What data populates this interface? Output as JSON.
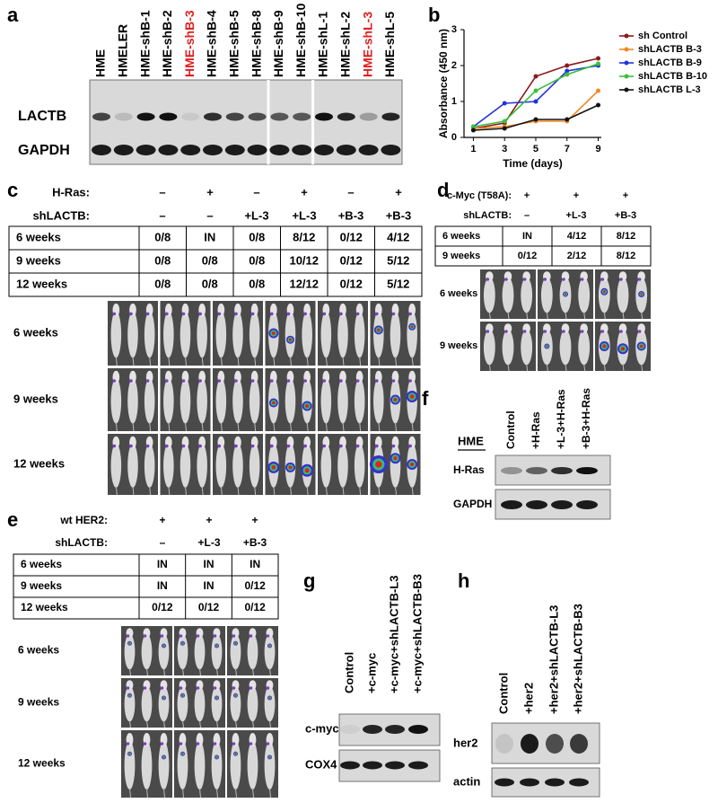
{
  "panel_a": {
    "label": "a",
    "lanes": [
      "HME",
      "HMELER",
      "HME-shB-1",
      "HME-shB-2",
      "HME-shB-3",
      "HME-shB-4",
      "HME-shB-5",
      "HME-shB-8",
      "HME-shB-9",
      "HME-shB-10",
      "HME-shL-1",
      "HME-shL-2",
      "HME-shL-3",
      "HME-shL-5"
    ],
    "lane_colors": [
      "#000000",
      "#000000",
      "#000000",
      "#000000",
      "#e02020",
      "#000000",
      "#000000",
      "#000000",
      "#000000",
      "#000000",
      "#000000",
      "#000000",
      "#e02020",
      "#000000"
    ],
    "rows": [
      "LACTB",
      "GAPDH"
    ]
  },
  "chart_data": {
    "type": "line",
    "panel_label": "b",
    "x_label": "Time (days)",
    "y_label": "Absorbance (450 nm)",
    "x": [
      1,
      3,
      5,
      7,
      9
    ],
    "xlim": [
      0.4,
      9.2
    ],
    "xticks": [
      1,
      3,
      5,
      7,
      9
    ],
    "ylim": [
      0,
      3
    ],
    "yticks": [
      0,
      1,
      2,
      3
    ],
    "series": [
      {
        "name": "sh Control",
        "color": "#8b1a1a",
        "values": [
          0.25,
          0.4,
          1.7,
          2.0,
          2.2
        ]
      },
      {
        "name": "shLACTB B-3",
        "color": "#f08a24",
        "values": [
          0.25,
          0.3,
          0.45,
          0.45,
          1.3
        ]
      },
      {
        "name": "shLACTB B-9",
        "color": "#2233dd",
        "values": [
          0.3,
          0.95,
          1.0,
          1.85,
          2.0
        ]
      },
      {
        "name": "shLACTB B-10",
        "color": "#3cbf3c",
        "values": [
          0.3,
          0.45,
          1.3,
          1.75,
          2.05
        ]
      },
      {
        "name": "shLACTB L-3",
        "color": "#111111",
        "values": [
          0.2,
          0.25,
          0.5,
          0.5,
          0.9
        ]
      }
    ]
  },
  "panel_c": {
    "label": "c",
    "conditions": [
      {
        "name": "H-Ras:",
        "values": [
          "–",
          "+",
          "–",
          "+",
          "–",
          "+"
        ]
      },
      {
        "name": "shLACTB:",
        "values": [
          "–",
          "–",
          "+L-3",
          "+L-3",
          "+B-3",
          "+B-3"
        ]
      }
    ],
    "table": [
      {
        "label": "6 weeks",
        "cells": [
          "0/8",
          "IN",
          "0/8",
          "8/12",
          "0/12",
          "4/12"
        ]
      },
      {
        "label": "9 weeks",
        "cells": [
          "0/8",
          "0/8",
          "0/8",
          "10/12",
          "0/12",
          "5/12"
        ]
      },
      {
        "label": "12 weeks",
        "cells": [
          "0/8",
          "0/8",
          "0/8",
          "12/12",
          "0/12",
          "5/12"
        ]
      }
    ],
    "image_rows": [
      "6 weeks",
      "9 weeks",
      "12 weeks"
    ]
  },
  "panel_d": {
    "label": "d",
    "conditions": [
      {
        "name": "c-Myc (T58A):",
        "values": [
          "+",
          "+",
          "+"
        ]
      },
      {
        "name": "shLACTB:",
        "values": [
          "–",
          "+L-3",
          "+B-3"
        ]
      }
    ],
    "table": [
      {
        "label": "6 weeks",
        "cells": [
          "IN",
          "4/12",
          "8/12"
        ]
      },
      {
        "label": "9 weeks",
        "cells": [
          "0/12",
          "2/12",
          "8/12"
        ]
      }
    ],
    "image_rows": [
      "6 weeks",
      "9 weeks"
    ]
  },
  "panel_e": {
    "label": "e",
    "conditions": [
      {
        "name": "wt HER2:",
        "values": [
          "+",
          "+",
          "+"
        ]
      },
      {
        "name": "shLACTB:",
        "values": [
          "–",
          "+L-3",
          "+B-3"
        ]
      }
    ],
    "table": [
      {
        "label": "6 weeks",
        "cells": [
          "IN",
          "IN",
          "IN"
        ]
      },
      {
        "label": "9 weeks",
        "cells": [
          "IN",
          "IN",
          "0/12"
        ]
      },
      {
        "label": "12 weeks",
        "cells": [
          "0/12",
          "0/12",
          "0/12"
        ]
      }
    ],
    "image_rows": [
      "6 weeks",
      "9 weeks",
      "12 weeks"
    ]
  },
  "panel_f": {
    "label": "f",
    "cell_line": "HME",
    "lanes": [
      "Control",
      "+H-Ras",
      "+L-3+H-Ras",
      "+B-3+H-Ras"
    ],
    "rows": [
      "H-Ras",
      "GAPDH"
    ]
  },
  "panel_g": {
    "label": "g",
    "lanes": [
      "Control",
      "+c-myc",
      "+c-myc+shLACTB-L3",
      "+c-myc+shLACTB-B3"
    ],
    "rows": [
      "c-myc",
      "COX4"
    ]
  },
  "panel_h": {
    "label": "h",
    "lanes": [
      "Control",
      "+her2",
      "+her2+shLACTB-L3",
      "+her2+shLACTB-B3"
    ],
    "rows": [
      "her2",
      "actin"
    ]
  }
}
